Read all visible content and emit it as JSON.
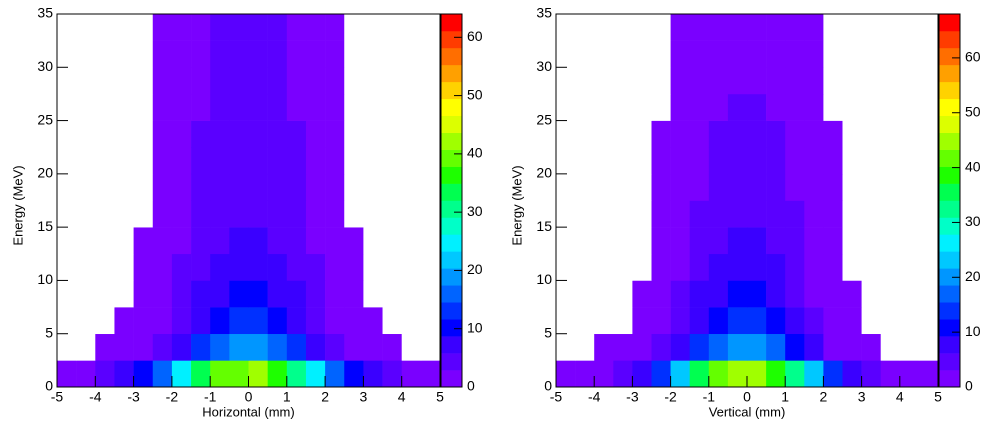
{
  "chart_data": [
    {
      "type": "heatmap",
      "xlabel": "Horizontal (mm)",
      "ylabel": "Energy (MeV)",
      "xlim": [
        -5,
        5
      ],
      "ylim": [
        0,
        35
      ],
      "zlim": [
        0,
        64
      ],
      "xticks": [
        -5,
        -4,
        -3,
        -2,
        -1,
        0,
        1,
        2,
        3,
        4,
        5
      ],
      "yticks": [
        0,
        5,
        10,
        15,
        20,
        25,
        30,
        35
      ],
      "zticks": [
        0,
        10,
        20,
        30,
        40,
        50,
        60
      ],
      "xbins": [
        -5,
        -4.5,
        -4,
        -3.5,
        -3,
        -2.5,
        -2,
        -1.5,
        -1,
        -0.5,
        0,
        0.5,
        1,
        1.5,
        2,
        2.5,
        3,
        3.5,
        4,
        4.5,
        5
      ],
      "ybins": [
        0,
        2.5,
        5,
        7.5,
        10,
        12.5,
        15,
        17.5,
        20,
        22.5,
        25,
        27.5,
        30,
        32.5,
        35
      ],
      "z": [
        [
          2,
          2,
          4,
          6,
          10,
          16,
          24,
          32,
          38,
          40,
          41,
          37,
          31,
          25,
          15,
          9,
          6,
          4,
          2,
          1
        ],
        [
          0,
          0,
          1,
          1,
          2,
          4,
          7,
          12,
          16,
          18,
          18,
          16,
          12,
          7,
          4,
          2,
          1,
          1,
          0,
          0
        ],
        [
          0,
          0,
          0,
          1,
          1,
          2,
          5,
          8,
          11,
          12,
          12,
          11,
          8,
          5,
          2,
          1,
          1,
          0,
          0,
          0
        ],
        [
          0,
          0,
          0,
          0,
          1,
          2,
          4,
          6,
          8,
          9,
          9,
          8,
          6,
          4,
          2,
          1,
          0,
          0,
          0,
          0
        ],
        [
          0,
          0,
          0,
          0,
          1,
          1,
          3,
          5,
          6,
          7,
          7,
          6,
          5,
          3,
          1,
          1,
          0,
          0,
          0,
          0
        ],
        [
          0,
          0,
          0,
          0,
          1,
          1,
          2,
          4,
          5,
          6,
          6,
          5,
          4,
          2,
          1,
          1,
          0,
          0,
          0,
          0
        ],
        [
          0,
          0,
          0,
          0,
          0,
          1,
          2,
          3,
          5,
          5,
          5,
          5,
          3,
          2,
          1,
          0,
          0,
          0,
          0,
          0
        ],
        [
          0,
          0,
          0,
          0,
          0,
          1,
          2,
          3,
          4,
          5,
          5,
          4,
          3,
          2,
          1,
          0,
          0,
          0,
          0,
          0
        ],
        [
          0,
          0,
          0,
          0,
          0,
          1,
          2,
          3,
          4,
          4,
          4,
          4,
          3,
          2,
          1,
          0,
          0,
          0,
          0,
          0
        ],
        [
          0,
          0,
          0,
          0,
          0,
          1,
          2,
          3,
          3,
          4,
          4,
          3,
          3,
          2,
          1,
          0,
          0,
          0,
          0,
          0
        ],
        [
          0,
          0,
          0,
          0,
          0,
          1,
          1,
          2,
          3,
          3,
          3,
          3,
          2,
          1,
          1,
          0,
          0,
          0,
          0,
          0
        ],
        [
          0,
          0,
          0,
          0,
          0,
          1,
          1,
          2,
          3,
          3,
          3,
          3,
          2,
          1,
          1,
          0,
          0,
          0,
          0,
          0
        ],
        [
          0,
          0,
          0,
          0,
          0,
          1,
          1,
          2,
          3,
          3,
          3,
          3,
          2,
          1,
          1,
          0,
          0,
          0,
          0,
          0
        ],
        [
          0,
          0,
          0,
          0,
          0,
          1,
          1,
          2,
          3,
          3,
          3,
          3,
          2,
          1,
          1,
          0,
          0,
          0,
          0,
          0
        ]
      ],
      "palette": [
        "#7a00ff",
        "#5a00ff",
        "#3a00ff",
        "#0000ff",
        "#0030ff",
        "#0064ff",
        "#0096ff",
        "#00c8ff",
        "#00f0ff",
        "#00ffc8",
        "#00ff8c",
        "#00ff50",
        "#1eff00",
        "#64ff00",
        "#a0ff00",
        "#dcff00",
        "#ffff00",
        "#ffd200",
        "#ffa000",
        "#ff6e00",
        "#ff3c00",
        "#ff0000"
      ]
    },
    {
      "type": "heatmap",
      "xlabel": "Vertical (mm)",
      "ylabel": "Energy (MeV)",
      "xlim": [
        -5,
        5
      ],
      "ylim": [
        0,
        35
      ],
      "zlim": [
        0,
        68
      ],
      "xticks": [
        -5,
        -4,
        -3,
        -2,
        -1,
        0,
        1,
        2,
        3,
        4,
        5
      ],
      "yticks": [
        0,
        5,
        10,
        15,
        20,
        25,
        30,
        35
      ],
      "zticks": [
        0,
        10,
        20,
        30,
        40,
        50,
        60
      ],
      "xbins": [
        -5,
        -4.5,
        -4,
        -3.5,
        -3,
        -2.5,
        -2,
        -1.5,
        -1,
        -0.5,
        0,
        0.5,
        1,
        1.5,
        2,
        2.5,
        3,
        3.5,
        4,
        4.5,
        5
      ],
      "ybins": [
        0,
        2.5,
        5,
        7.5,
        10,
        12.5,
        15,
        17.5,
        20,
        22.5,
        25,
        27.5,
        30,
        32.5,
        35
      ],
      "z": [
        [
          1,
          2,
          3,
          5,
          9,
          15,
          24,
          34,
          41,
          44,
          44,
          40,
          33,
          23,
          14,
          8,
          5,
          3,
          2,
          1
        ],
        [
          0,
          0,
          1,
          1,
          2,
          4,
          8,
          13,
          17,
          19,
          19,
          17,
          12,
          7,
          3,
          2,
          1,
          0,
          0,
          0
        ],
        [
          0,
          0,
          0,
          0,
          1,
          2,
          5,
          9,
          12,
          13,
          13,
          11,
          8,
          4,
          2,
          1,
          0,
          0,
          0,
          0
        ],
        [
          0,
          0,
          0,
          0,
          1,
          2,
          4,
          7,
          9,
          10,
          10,
          9,
          6,
          3,
          1,
          1,
          0,
          0,
          0,
          0
        ],
        [
          0,
          0,
          0,
          0,
          0,
          1,
          3,
          5,
          7,
          8,
          8,
          7,
          5,
          3,
          1,
          0,
          0,
          0,
          0,
          0
        ],
        [
          0,
          0,
          0,
          0,
          0,
          1,
          2,
          4,
          6,
          7,
          7,
          6,
          4,
          2,
          1,
          0,
          0,
          0,
          0,
          0
        ],
        [
          0,
          0,
          0,
          0,
          0,
          1,
          2,
          4,
          5,
          6,
          6,
          5,
          4,
          2,
          1,
          0,
          0,
          0,
          0,
          0
        ],
        [
          0,
          0,
          0,
          0,
          0,
          1,
          2,
          3,
          5,
          5,
          5,
          5,
          3,
          2,
          1,
          0,
          0,
          0,
          0,
          0
        ],
        [
          0,
          0,
          0,
          0,
          0,
          1,
          2,
          3,
          4,
          5,
          5,
          4,
          3,
          2,
          1,
          0,
          0,
          0,
          0,
          0
        ],
        [
          0,
          0,
          0,
          0,
          0,
          1,
          1,
          3,
          4,
          4,
          4,
          4,
          3,
          1,
          1,
          0,
          0,
          0,
          0,
          0
        ],
        [
          0,
          0,
          0,
          0,
          0,
          0,
          1,
          2,
          3,
          4,
          4,
          3,
          2,
          1,
          0,
          0,
          0,
          0,
          0,
          0
        ],
        [
          0,
          0,
          0,
          0,
          0,
          0,
          1,
          2,
          3,
          3,
          3,
          3,
          2,
          1,
          0,
          0,
          0,
          0,
          0,
          0
        ],
        [
          0,
          0,
          0,
          0,
          0,
          0,
          1,
          2,
          3,
          3,
          3,
          3,
          2,
          1,
          0,
          0,
          0,
          0,
          0,
          0
        ],
        [
          0,
          0,
          0,
          0,
          0,
          0,
          1,
          2,
          3,
          3,
          3,
          3,
          2,
          1,
          0,
          0,
          0,
          0,
          0,
          0
        ]
      ],
      "palette": [
        "#7a00ff",
        "#5a00ff",
        "#3a00ff",
        "#0000ff",
        "#0030ff",
        "#0064ff",
        "#0096ff",
        "#00c8ff",
        "#00f0ff",
        "#00ffc8",
        "#00ff8c",
        "#00ff50",
        "#1eff00",
        "#64ff00",
        "#a0ff00",
        "#dcff00",
        "#ffff00",
        "#ffd200",
        "#ffa000",
        "#ff6e00",
        "#ff3c00",
        "#ff0000"
      ]
    }
  ]
}
